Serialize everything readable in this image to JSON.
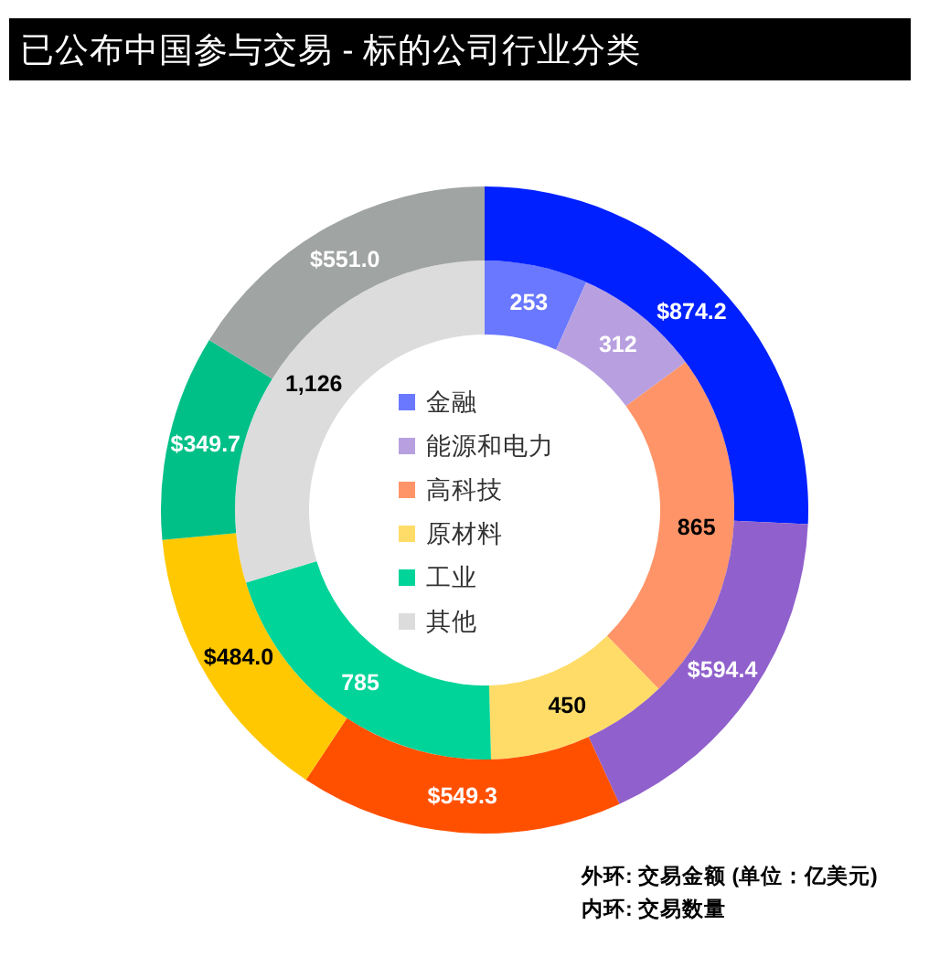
{
  "chart_data": {
    "type": "donut",
    "title": "已公布中国参与交易 - 标的公司行业分类",
    "categories": [
      "金融",
      "能源和电力",
      "高科技",
      "原材料",
      "工业",
      "其他"
    ],
    "series": [
      {
        "values": [
          253,
          312,
          865,
          450,
          785,
          1126
        ],
        "colors": [
          "#6a78ff",
          "#b8a0e0",
          "#ff9468",
          "#ffdc68",
          "#00d498",
          "#dcdcdc"
        ],
        "value_labels": [
          "253",
          "312",
          "865",
          "450",
          "785",
          "1,126"
        ]
      },
      {
        "values": [
          874.2,
          594.4,
          549.3,
          484.0,
          349.7,
          551.0
        ],
        "colors": [
          "#0020ff",
          "#9060cc",
          "#ff5000",
          "#ffc800",
          "#00c088",
          "#a0a4a2"
        ],
        "value_labels": [
          "$874.2",
          "$594.4",
          "$549.3",
          "$484.0",
          "$349.7",
          "$551.0"
        ]
      }
    ],
    "legend": "center",
    "annotations": [
      "外环: 交易金额 (单位：亿美元)",
      "内环: 交易数量"
    ]
  }
}
